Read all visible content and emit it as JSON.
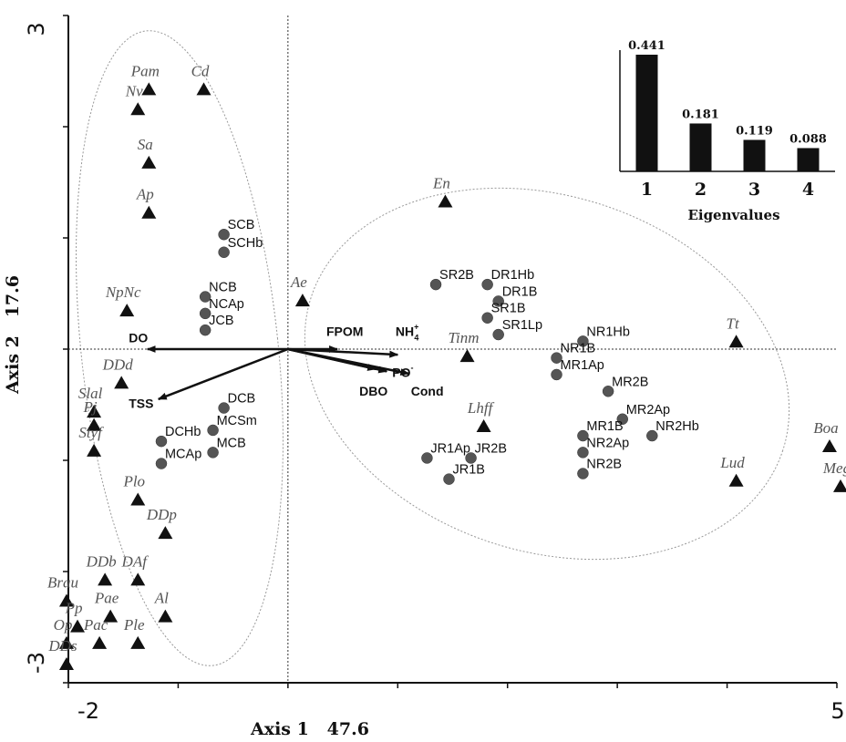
{
  "chart_data": [
    {
      "type": "scatter",
      "title": "",
      "xlabel": "Axis 1   47.6",
      "ylabel": "Axis 2   17.6",
      "xlim": [
        -2,
        5
      ],
      "ylim": [
        -3,
        3
      ],
      "x_tick_labels": [
        "-2",
        "5"
      ],
      "y_tick_labels": [
        "3",
        "-3"
      ],
      "grid": false,
      "reference_lines": [
        {
          "axis": "x",
          "value": 0
        },
        {
          "axis": "y",
          "value": 0
        }
      ],
      "sites": [
        {
          "label": "SCB",
          "x": -0.55,
          "y": 1.08
        },
        {
          "label": "SCHb",
          "x": -0.55,
          "y": 0.92
        },
        {
          "label": "NCB",
          "x": -0.72,
          "y": 0.52
        },
        {
          "label": "NCAp",
          "x": -0.72,
          "y": 0.37
        },
        {
          "label": "JCB",
          "x": -0.72,
          "y": 0.22
        },
        {
          "label": "SR2B",
          "x": 1.38,
          "y": 0.63
        },
        {
          "label": "DR1Hb",
          "x": 1.85,
          "y": 0.63
        },
        {
          "label": "DR1B",
          "x": 1.95,
          "y": 0.48
        },
        {
          "label": "SR1B",
          "x": 1.85,
          "y": 0.33
        },
        {
          "label": "SR1Lp",
          "x": 1.95,
          "y": 0.18
        },
        {
          "label": "NR1Hb",
          "x": 2.72,
          "y": 0.12
        },
        {
          "label": "NR1B",
          "x": 2.48,
          "y": -0.03
        },
        {
          "label": "MR1Ap",
          "x": 2.48,
          "y": -0.18
        },
        {
          "label": "MR2B",
          "x": 2.95,
          "y": -0.33
        },
        {
          "label": "MR2Ap",
          "x": 3.08,
          "y": -0.58
        },
        {
          "label": "NR2Hb",
          "x": 3.35,
          "y": -0.73
        },
        {
          "label": "MR1B",
          "x": 2.72,
          "y": -0.73
        },
        {
          "label": "NR2Ap",
          "x": 2.72,
          "y": -0.88
        },
        {
          "label": "NR2B",
          "x": 2.72,
          "y": -1.07
        },
        {
          "label": "DCB",
          "x": -0.55,
          "y": -0.48
        },
        {
          "label": "MCSm",
          "x": -0.65,
          "y": -0.68
        },
        {
          "label": "DCHb",
          "x": -1.12,
          "y": -0.78
        },
        {
          "label": "MCB",
          "x": -0.65,
          "y": -0.88
        },
        {
          "label": "MCAp",
          "x": -1.12,
          "y": -0.98
        },
        {
          "label": "JR1Ap",
          "x": 1.3,
          "y": -0.93
        },
        {
          "label": "JR2B",
          "x": 1.7,
          "y": -0.93
        },
        {
          "label": "JR1B",
          "x": 1.5,
          "y": -1.12
        }
      ],
      "taxa": [
        {
          "label": "Cd",
          "x": -0.8,
          "y": 2.44
        },
        {
          "label": "Pam",
          "x": -1.3,
          "y": 2.44
        },
        {
          "label": "Nv",
          "x": -1.4,
          "y": 2.26
        },
        {
          "label": "Sa",
          "x": -1.3,
          "y": 1.78
        },
        {
          "label": "Ap",
          "x": -1.3,
          "y": 1.33
        },
        {
          "label": "NpNc",
          "x": -1.5,
          "y": 0.45
        },
        {
          "label": "Ae",
          "x": 0.1,
          "y": 0.54
        },
        {
          "label": "En",
          "x": 1.4,
          "y": 1.43
        },
        {
          "label": "Tt",
          "x": 4.05,
          "y": 0.17
        },
        {
          "label": "Tinm",
          "x": 1.6,
          "y": 0.04
        },
        {
          "label": "DDd",
          "x": -1.55,
          "y": -0.2
        },
        {
          "label": "Slal",
          "x": -1.8,
          "y": -0.46
        },
        {
          "label": "Pj",
          "x": -1.8,
          "y": -0.58
        },
        {
          "label": "Styf",
          "x": -1.8,
          "y": -0.81
        },
        {
          "label": "Lhff",
          "x": 1.75,
          "y": -0.59
        },
        {
          "label": "Plo",
          "x": -1.4,
          "y": -1.25
        },
        {
          "label": "DDp",
          "x": -1.15,
          "y": -1.55
        },
        {
          "label": "DDb",
          "x": -1.7,
          "y": -1.97
        },
        {
          "label": "DAf",
          "x": -1.4,
          "y": -1.97
        },
        {
          "label": "Brau",
          "x": -2.05,
          "y": -2.16
        },
        {
          "label": "Pp",
          "x": -1.95,
          "y": -2.39
        },
        {
          "label": "Al",
          "x": -1.15,
          "y": -2.3
        },
        {
          "label": "Pae",
          "x": -1.65,
          "y": -2.3
        },
        {
          "label": "Pac",
          "x": -1.75,
          "y": -2.54
        },
        {
          "label": "Ple",
          "x": -1.4,
          "y": -2.54
        },
        {
          "label": "Op",
          "x": -2.05,
          "y": -2.54
        },
        {
          "label": "DDs",
          "x": -2.05,
          "y": -2.73
        },
        {
          "label": "Lud",
          "x": 4.05,
          "y": -1.08
        },
        {
          "label": "Boa",
          "x": 4.9,
          "y": -0.77
        },
        {
          "label": "Meg",
          "x": 5.0,
          "y": -1.13
        }
      ],
      "variables": [
        {
          "label": "DO",
          "x": -1.28,
          "y": 0.0,
          "label_x": -1.45,
          "label_y": 0.06
        },
        {
          "label": "TSS",
          "x": -1.18,
          "y": -0.45,
          "label_x": -1.45,
          "label_y": -0.53
        },
        {
          "label": "FPOM",
          "x": 0.45,
          "y": 0.0,
          "label_x": 0.35,
          "label_y": 0.12
        },
        {
          "label": "NH",
          "sup": "+",
          "sub": "4",
          "x": 1.0,
          "y": -0.05,
          "label_x": 0.98,
          "label_y": 0.12
        },
        {
          "label": "PO",
          "sup": "-",
          "x": 0.9,
          "y": -0.2,
          "label_x": 0.95,
          "label_y": -0.25
        },
        {
          "label": "DBO",
          "x": 0.8,
          "y": -0.18,
          "label_x": 0.65,
          "label_y": -0.42
        },
        {
          "label": "Cond",
          "x": 1.1,
          "y": -0.22,
          "label_x": 1.12,
          "label_y": -0.42
        }
      ]
    },
    {
      "type": "bar",
      "title": "Eigenvalues",
      "categories": [
        "1",
        "2",
        "3",
        "4"
      ],
      "values": [
        0.441,
        0.181,
        0.119,
        0.088
      ],
      "value_labels": [
        "0.441",
        "0.181",
        "0.119",
        "0.088"
      ],
      "ylim": [
        0,
        0.441
      ],
      "bar_color": "#111111"
    }
  ],
  "style": {
    "site_color": "#555555",
    "taxon_color": "#111111",
    "arrow_color": "#111111",
    "ellipse_color": "#999999"
  }
}
